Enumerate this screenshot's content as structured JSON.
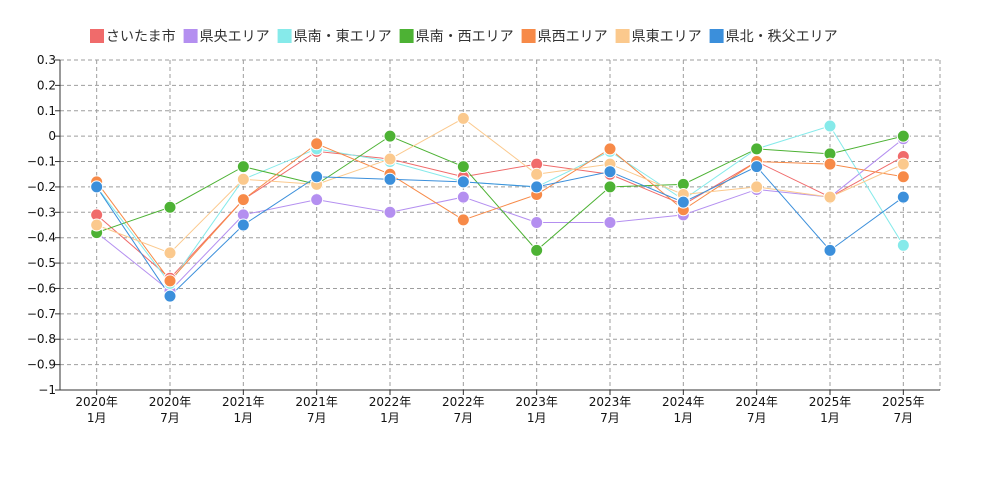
{
  "chart_data": {
    "type": "line",
    "categories": [
      [
        "2020年",
        "1月"
      ],
      [
        "2020年",
        "7月"
      ],
      [
        "2021年",
        "1月"
      ],
      [
        "2021年",
        "7月"
      ],
      [
        "2022年",
        "1月"
      ],
      [
        "2022年",
        "7月"
      ],
      [
        "2023年",
        "1月"
      ],
      [
        "2023年",
        "7月"
      ],
      [
        "2024年",
        "1月"
      ],
      [
        "2024年",
        "7月"
      ],
      [
        "2025年",
        "1月"
      ],
      [
        "2025年",
        "7月"
      ]
    ],
    "ylim": [
      -1,
      0.3
    ],
    "yticks": [
      0.3,
      0.2,
      0.1,
      0,
      -0.1,
      -0.2,
      -0.3,
      -0.4,
      -0.5,
      -0.6,
      -0.7,
      -0.8,
      -0.9,
      -1
    ],
    "ytick_labels": [
      "0.3",
      "0.2",
      "0.1",
      "0",
      "−0.1",
      "−0.2",
      "−0.3",
      "−0.4",
      "−0.5",
      "−0.6",
      "−0.7",
      "−0.8",
      "−0.9",
      "−1"
    ],
    "grid": true,
    "legend_position": "top",
    "series": [
      {
        "name": "さいたま市",
        "color": "#f06b6b",
        "values": [
          -0.31,
          -0.56,
          -0.25,
          -0.06,
          -0.09,
          -0.16,
          -0.11,
          -0.15,
          -0.27,
          -0.1,
          -0.24,
          -0.08
        ]
      },
      {
        "name": "県央エリア",
        "color": "#b48ff0",
        "values": [
          -0.38,
          -0.61,
          -0.31,
          -0.25,
          -0.3,
          -0.24,
          -0.34,
          -0.34,
          -0.31,
          -0.21,
          -0.24,
          -0.01
        ]
      },
      {
        "name": "県南・東エリア",
        "color": "#86eaea",
        "values": [
          -0.2,
          -0.58,
          -0.17,
          -0.05,
          -0.1,
          -0.18,
          -0.2,
          -0.06,
          -0.25,
          -0.05,
          0.04,
          -0.43
        ]
      },
      {
        "name": "県南・西エリア",
        "color": "#4db234",
        "values": [
          -0.38,
          -0.28,
          -0.12,
          -0.19,
          0.0,
          -0.12,
          -0.45,
          -0.2,
          -0.19,
          -0.05,
          -0.07,
          0.0
        ]
      },
      {
        "name": "県西エリア",
        "color": "#f78a48",
        "values": [
          -0.18,
          -0.57,
          -0.25,
          -0.03,
          -0.15,
          -0.33,
          -0.23,
          -0.05,
          -0.29,
          -0.1,
          -0.11,
          -0.16
        ]
      },
      {
        "name": "県東エリア",
        "color": "#fbc98d",
        "values": [
          -0.35,
          -0.46,
          -0.17,
          -0.19,
          -0.09,
          0.07,
          -0.15,
          -0.11,
          -0.23,
          -0.2,
          -0.24,
          -0.11
        ]
      },
      {
        "name": "県北・秩父エリア",
        "color": "#3b8fdb",
        "values": [
          -0.2,
          -0.63,
          -0.35,
          -0.16,
          -0.17,
          -0.18,
          -0.2,
          -0.14,
          -0.26,
          -0.12,
          -0.45,
          -0.24
        ]
      }
    ]
  }
}
